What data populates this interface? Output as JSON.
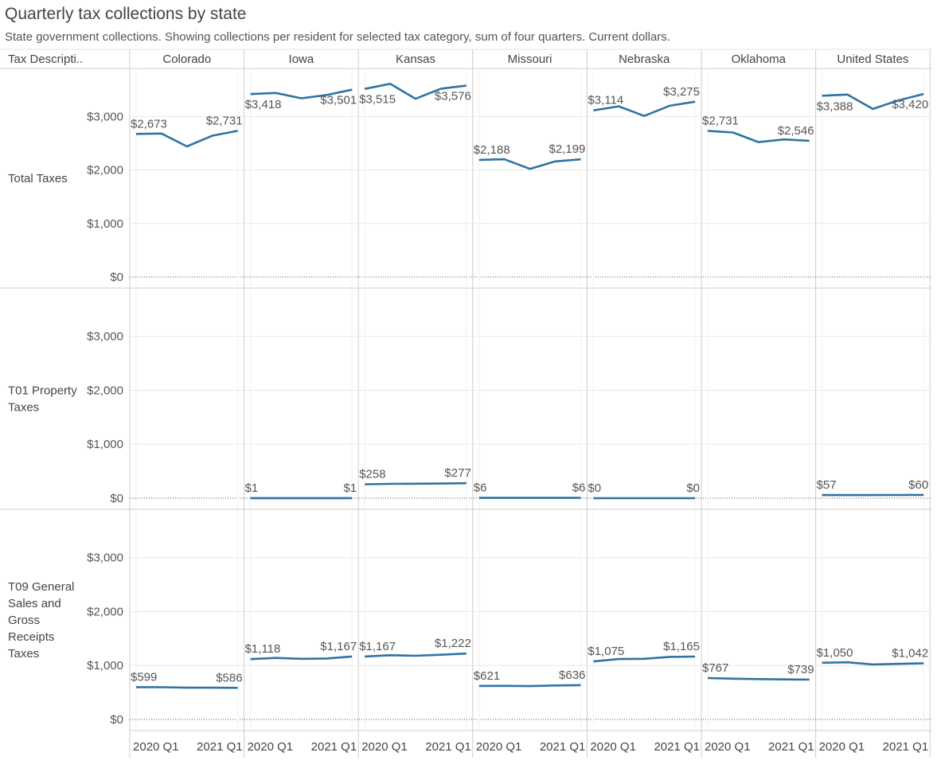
{
  "header": {
    "title": "Quarterly tax collections by state",
    "subtitle": "State government collections. Showing collections per resident for selected tax category, sum of four quarters. Current dollars.",
    "row_header": "Tax Descripti.."
  },
  "colors": {
    "line": "#2e74a3",
    "grid": "#e8e8e8",
    "divider": "#cccccc",
    "zero_line": "#555555"
  },
  "chart_data": {
    "type": "line",
    "layout": "small-multiples",
    "columns": [
      "Colorado",
      "Iowa",
      "Kansas",
      "Missouri",
      "Nebraska",
      "Oklahoma",
      "United States"
    ],
    "rows": [
      "Total Taxes",
      "T01 Property Taxes",
      "T09 General Sales and Gross Receipts Taxes"
    ],
    "x": [
      "2020 Q1",
      "2020 Q2",
      "2020 Q3",
      "2020 Q4",
      "2021 Q1"
    ],
    "x_tick_labels": [
      "2020 Q1",
      "2021 Q1"
    ],
    "ylim": [
      0,
      3600
    ],
    "y_ticks": [
      0,
      1000,
      2000,
      3000
    ],
    "y_tick_labels": [
      "$0",
      "$1,000",
      "$2,000",
      "$3,000"
    ],
    "grid": true,
    "series": [
      {
        "row": "Total Taxes",
        "column": "Colorado",
        "values": [
          2673,
          2680,
          2440,
          2640,
          2731
        ],
        "first_label": "$2,673",
        "last_label": "$2,731"
      },
      {
        "row": "Total Taxes",
        "column": "Iowa",
        "values": [
          3418,
          3440,
          3340,
          3400,
          3501
        ],
        "first_label": "$3,418",
        "last_label": "$3,501"
      },
      {
        "row": "Total Taxes",
        "column": "Kansas",
        "values": [
          3515,
          3610,
          3330,
          3520,
          3576
        ],
        "first_label": "$3,515",
        "last_label": "$3,576"
      },
      {
        "row": "Total Taxes",
        "column": "Missouri",
        "values": [
          2188,
          2200,
          2020,
          2160,
          2199
        ],
        "first_label": "$2,188",
        "last_label": "$2,199"
      },
      {
        "row": "Total Taxes",
        "column": "Nebraska",
        "values": [
          3114,
          3190,
          3010,
          3200,
          3275
        ],
        "first_label": "$3,114",
        "last_label": "$3,275"
      },
      {
        "row": "Total Taxes",
        "column": "Oklahoma",
        "values": [
          2731,
          2700,
          2520,
          2570,
          2546
        ],
        "first_label": "$2,731",
        "last_label": "$2,546"
      },
      {
        "row": "Total Taxes",
        "column": "United States",
        "values": [
          3388,
          3410,
          3140,
          3300,
          3420
        ],
        "first_label": "$3,388",
        "last_label": "$3,420"
      },
      {
        "row": "T01 Property Taxes",
        "column": "Iowa",
        "values": [
          1,
          1,
          1,
          1,
          1
        ],
        "first_label": "$1",
        "last_label": "$1"
      },
      {
        "row": "T01 Property Taxes",
        "column": "Kansas",
        "values": [
          258,
          265,
          268,
          272,
          277
        ],
        "first_label": "$258",
        "last_label": "$277"
      },
      {
        "row": "T01 Property Taxes",
        "column": "Missouri",
        "values": [
          6,
          6,
          6,
          6,
          6
        ],
        "first_label": "$6",
        "last_label": "$6"
      },
      {
        "row": "T01 Property Taxes",
        "column": "Nebraska",
        "values": [
          0,
          0,
          0,
          0,
          0
        ],
        "first_label": "$0",
        "last_label": "$0"
      },
      {
        "row": "T01 Property Taxes",
        "column": "United States",
        "values": [
          57,
          58,
          58,
          59,
          60
        ],
        "first_label": "$57",
        "last_label": "$60"
      },
      {
        "row": "T09 General Sales and Gross Receipts Taxes",
        "column": "Colorado",
        "values": [
          599,
          598,
          588,
          588,
          586
        ],
        "first_label": "$599",
        "last_label": "$586"
      },
      {
        "row": "T09 General Sales and Gross Receipts Taxes",
        "column": "Iowa",
        "values": [
          1118,
          1140,
          1125,
          1130,
          1167
        ],
        "first_label": "$1,118",
        "last_label": "$1,167"
      },
      {
        "row": "T09 General Sales and Gross Receipts Taxes",
        "column": "Kansas",
        "values": [
          1167,
          1190,
          1180,
          1200,
          1222
        ],
        "first_label": "$1,167",
        "last_label": "$1,222"
      },
      {
        "row": "T09 General Sales and Gross Receipts Taxes",
        "column": "Missouri",
        "values": [
          621,
          622,
          618,
          630,
          636
        ],
        "first_label": "$621",
        "last_label": "$636"
      },
      {
        "row": "T09 General Sales and Gross Receipts Taxes",
        "column": "Nebraska",
        "values": [
          1075,
          1120,
          1125,
          1160,
          1165
        ],
        "first_label": "$1,075",
        "last_label": "$1,165"
      },
      {
        "row": "T09 General Sales and Gross Receipts Taxes",
        "column": "Oklahoma",
        "values": [
          767,
          755,
          748,
          742,
          739
        ],
        "first_label": "$767",
        "last_label": "$739"
      },
      {
        "row": "T09 General Sales and Gross Receipts Taxes",
        "column": "United States",
        "values": [
          1050,
          1060,
          1020,
          1030,
          1042
        ],
        "first_label": "$1,050",
        "last_label": "$1,042"
      }
    ]
  }
}
